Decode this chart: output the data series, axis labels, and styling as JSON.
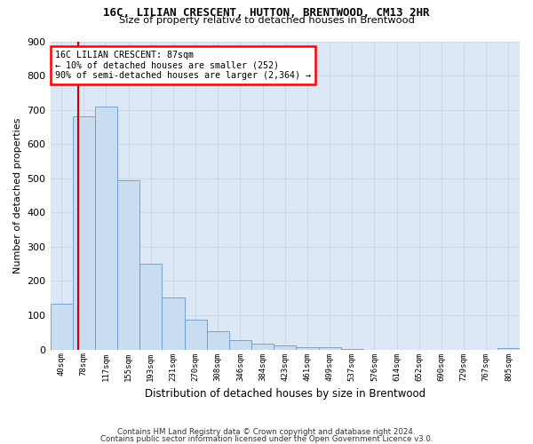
{
  "title1": "16C, LILIAN CRESCENT, HUTTON, BRENTWOOD, CM13 2HR",
  "title2": "Size of property relative to detached houses in Brentwood",
  "xlabel": "Distribution of detached houses by size in Brentwood",
  "ylabel": "Number of detached properties",
  "bar_labels": [
    "40sqm",
    "78sqm",
    "117sqm",
    "155sqm",
    "193sqm",
    "231sqm",
    "270sqm",
    "308sqm",
    "346sqm",
    "384sqm",
    "423sqm",
    "461sqm",
    "499sqm",
    "537sqm",
    "576sqm",
    "614sqm",
    "652sqm",
    "690sqm",
    "729sqm",
    "767sqm",
    "805sqm"
  ],
  "bar_values": [
    135,
    680,
    710,
    495,
    250,
    153,
    87,
    53,
    27,
    18,
    12,
    8,
    8,
    1,
    0,
    0,
    0,
    0,
    0,
    0,
    5
  ],
  "bar_color": "#c9ddf0",
  "bar_edge_color": "#6699cc",
  "grid_color": "#ccd8ea",
  "background_color": "#dce8f5",
  "vline_color": "#cc0000",
  "ylim": [
    0,
    900
  ],
  "yticks": [
    0,
    100,
    200,
    300,
    400,
    500,
    600,
    700,
    800,
    900
  ],
  "annot_line1": "16C LILIAN CRESCENT: 87sqm",
  "annot_line2": "← 10% of detached houses are smaller (252)",
  "annot_line3": "90% of semi-detached houses are larger (2,364) →",
  "footer1": "Contains HM Land Registry data © Crown copyright and database right 2024.",
  "footer2": "Contains public sector information licensed under the Open Government Licence v3.0."
}
